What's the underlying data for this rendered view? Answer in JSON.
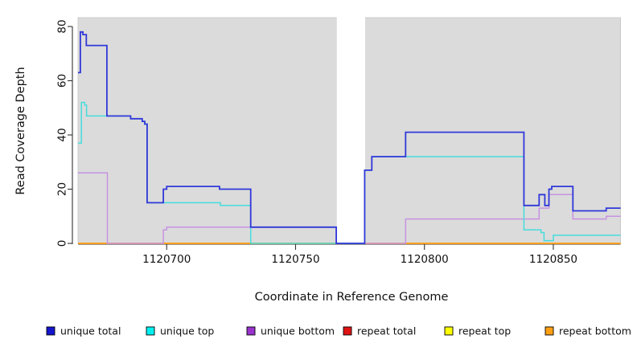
{
  "chart_data": {
    "type": "line",
    "subtype": "step-coverage",
    "title": "",
    "xlabel": "Coordinate in Reference Genome",
    "ylabel": "Read Coverage Depth",
    "x_ticks": [
      1120700,
      1120750,
      1120800,
      1120850
    ],
    "y_ticks": [
      0,
      20,
      40,
      60,
      80
    ],
    "x_range": [
      1120665.6,
      1120876.1
    ],
    "y_range": [
      0,
      80
    ],
    "grid": false,
    "panel_background": "#dbdbdb",
    "panel_border": "#c4c4c4",
    "no_data_gap": {
      "start": 1120766,
      "end": 1120777
    },
    "legend_position": "bottom",
    "series": [
      {
        "name": "unique total",
        "color": "#3038d8",
        "line_width": 1.8,
        "points": [
          [
            1120665.6,
            63
          ],
          [
            1120666.5,
            78
          ],
          [
            1120667.5,
            77
          ],
          [
            1120668.8,
            73
          ],
          [
            1120676.8,
            47
          ],
          [
            1120686.0,
            46
          ],
          [
            1120690.5,
            45
          ],
          [
            1120691.5,
            44
          ],
          [
            1120692.4,
            15
          ],
          [
            1120698.7,
            20
          ],
          [
            1120700.0,
            21
          ],
          [
            1120720.5,
            20
          ],
          [
            1120732.6,
            6
          ],
          [
            1120765.8,
            0
          ],
          [
            1120776.8,
            27
          ],
          [
            1120779.6,
            32
          ],
          [
            1120792.7,
            41
          ],
          [
            1120838.6,
            14
          ],
          [
            1120844.5,
            18
          ],
          [
            1120846.7,
            14
          ],
          [
            1120848.3,
            20
          ],
          [
            1120849.4,
            21
          ],
          [
            1120857.6,
            12
          ],
          [
            1120870.5,
            13
          ]
        ]
      },
      {
        "name": "unique top",
        "color": "#45dcdc",
        "line_width": 1.5,
        "points": [
          [
            1120665.6,
            37
          ],
          [
            1120666.9,
            52
          ],
          [
            1120668.2,
            51
          ],
          [
            1120668.9,
            47
          ],
          [
            1120686.0,
            46
          ],
          [
            1120690.5,
            45
          ],
          [
            1120691.5,
            44
          ],
          [
            1120692.4,
            15
          ],
          [
            1120720.8,
            14
          ],
          [
            1120732.6,
            0
          ],
          [
            1120776.8,
            27
          ],
          [
            1120779.6,
            32
          ],
          [
            1120838.6,
            5
          ],
          [
            1120845.2,
            4
          ],
          [
            1120846.4,
            1
          ],
          [
            1120850.0,
            3
          ]
        ]
      },
      {
        "name": "unique bottom",
        "color": "#c693e2",
        "line_width": 1.5,
        "points": [
          [
            1120665.6,
            26
          ],
          [
            1120677.0,
            0
          ],
          [
            1120698.7,
            5
          ],
          [
            1120700.0,
            6
          ],
          [
            1120765.8,
            0
          ],
          [
            1120792.7,
            9
          ],
          [
            1120844.5,
            13
          ],
          [
            1120848.3,
            18
          ],
          [
            1120857.6,
            9
          ],
          [
            1120870.5,
            10
          ]
        ]
      },
      {
        "name": "repeat total",
        "color": "#d23038",
        "line_width": 1.5,
        "points": [
          [
            1120665.6,
            0
          ]
        ]
      },
      {
        "name": "repeat top",
        "color": "#f2f220",
        "line_width": 1.5,
        "points": [
          [
            1120665.6,
            0
          ]
        ]
      },
      {
        "name": "repeat bottom",
        "color": "#ff9e1a",
        "line_width": 1.8,
        "points": [
          [
            1120665.6,
            0
          ]
        ]
      }
    ],
    "legend": [
      {
        "label": "unique total",
        "swatch_color": "#1515cc"
      },
      {
        "label": "unique top",
        "swatch_color": "#00f0f0"
      },
      {
        "label": "unique bottom",
        "swatch_color": "#9933cc"
      },
      {
        "label": "repeat total",
        "swatch_color": "#e01414"
      },
      {
        "label": "repeat top",
        "swatch_color": "#ffff00"
      },
      {
        "label": "repeat bottom",
        "swatch_color": "#ffa014"
      }
    ]
  }
}
